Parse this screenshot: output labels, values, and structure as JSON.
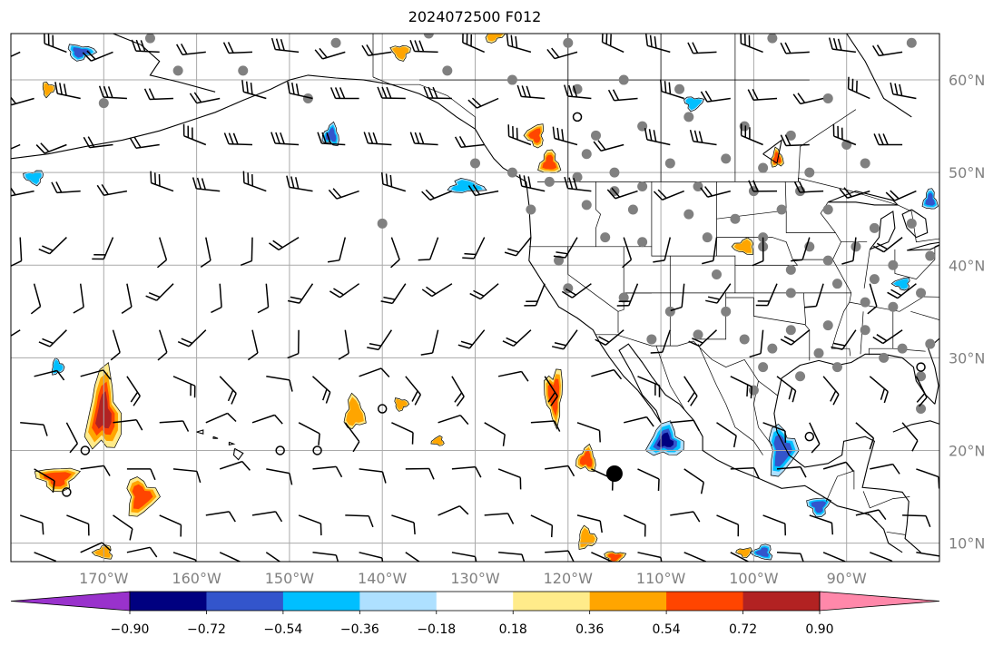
{
  "title": "2024072500 F012",
  "map": {
    "extent": {
      "lon_min": -180,
      "lon_max": -80,
      "lat_min": 8,
      "lat_max": 65
    },
    "lat_gridlines": [
      10,
      20,
      30,
      40,
      50,
      60
    ],
    "lon_gridlines": [
      -170,
      -160,
      -150,
      -140,
      -130,
      -120,
      -110,
      -100,
      -90
    ],
    "lat_labels": [
      "10°N",
      "20°N",
      "30°N",
      "40°N",
      "50°N",
      "60°N"
    ],
    "lon_labels": [
      "170°W",
      "160°W",
      "150°W",
      "140°W",
      "130°W",
      "120°W",
      "110°W",
      "100°W",
      "90°W"
    ],
    "colors": {
      "gridline": "#aaaaaa",
      "coast": "#000000",
      "station": "#808080",
      "barb": "#000000"
    }
  },
  "colorbar": {
    "bounds": [
      -1.08,
      -0.9,
      -0.72,
      -0.54,
      -0.36,
      -0.18,
      0.18,
      0.36,
      0.54,
      0.72,
      0.9,
      1.08
    ],
    "colors": [
      "#9932cc",
      "#000080",
      "#3355cc",
      "#00bfff",
      "#aee0ff",
      "#ffffff",
      "#ffeb8a",
      "#ffa500",
      "#ff4500",
      "#b22222",
      "#ff88aa"
    ],
    "under_color": "#9932cc",
    "over_color": "#ff88aa",
    "tick_values": [
      -0.9,
      -0.72,
      -0.54,
      -0.36,
      -0.18,
      0.18,
      0.36,
      0.54,
      0.72,
      0.9
    ],
    "tick_labels": [
      "−0.90",
      "−0.72",
      "−0.54",
      "−0.36",
      "−0.18",
      "0.18",
      "0.36",
      "0.54",
      "0.72",
      "0.90"
    ]
  },
  "fields": {
    "positive_blobs": [
      {
        "lon": -170,
        "lat": 24,
        "rlon": 2.2,
        "rlat": 5.5,
        "level": 0.72
      },
      {
        "lon": -166,
        "lat": 15,
        "rlon": 2.0,
        "rlat": 2.5,
        "level": 0.54
      },
      {
        "lon": -175,
        "lat": 17,
        "rlon": 2.6,
        "rlat": 1.6,
        "level": 0.54
      },
      {
        "lon": -170,
        "lat": 9,
        "rlon": 1.2,
        "rlat": 0.9,
        "level": 0.36
      },
      {
        "lon": -143,
        "lat": 24,
        "rlon": 1.3,
        "rlat": 2.2,
        "level": 0.36
      },
      {
        "lon": -138,
        "lat": 25,
        "rlon": 0.9,
        "rlat": 0.8,
        "level": 0.36
      },
      {
        "lon": -121.5,
        "lat": 26,
        "rlon": 1.2,
        "rlat": 3.5,
        "level": 0.54
      },
      {
        "lon": -118,
        "lat": 19,
        "rlon": 1.3,
        "rlat": 1.6,
        "level": 0.54
      },
      {
        "lon": -118,
        "lat": 10.5,
        "rlon": 1.2,
        "rlat": 1.4,
        "level": 0.36
      },
      {
        "lon": -115,
        "lat": 8.5,
        "rlon": 1.3,
        "rlat": 0.8,
        "level": 0.54
      },
      {
        "lon": -123.5,
        "lat": 54,
        "rlon": 1.2,
        "rlat": 1.5,
        "level": 0.54
      },
      {
        "lon": -122,
        "lat": 51,
        "rlon": 1.3,
        "rlat": 1.6,
        "level": 0.54
      },
      {
        "lon": -128,
        "lat": 65,
        "rlon": 1.2,
        "rlat": 1.2,
        "level": 0.36
      },
      {
        "lon": -138,
        "lat": 63,
        "rlon": 1.2,
        "rlat": 1.0,
        "level": 0.36
      },
      {
        "lon": -101,
        "lat": 42,
        "rlon": 1.4,
        "rlat": 1.0,
        "level": 0.36
      },
      {
        "lon": -97.5,
        "lat": 51.5,
        "rlon": 0.8,
        "rlat": 1.2,
        "level": 0.54
      },
      {
        "lon": -176,
        "lat": 59,
        "rlon": 0.8,
        "rlat": 0.9,
        "level": 0.36
      },
      {
        "lon": -101,
        "lat": 9,
        "rlon": 1.0,
        "rlat": 0.6,
        "level": 0.36
      },
      {
        "lon": -134,
        "lat": 21,
        "rlon": 0.8,
        "rlat": 0.6,
        "level": 0.36
      }
    ],
    "negative_blobs": [
      {
        "lon": -109.5,
        "lat": 21,
        "rlon": 2.3,
        "rlat": 2.2,
        "level": -0.72
      },
      {
        "lon": -97,
        "lat": 20,
        "rlon": 1.8,
        "rlat": 3.3,
        "level": -0.54
      },
      {
        "lon": -93,
        "lat": 14,
        "rlon": 1.4,
        "rlat": 1.3,
        "level": -0.54
      },
      {
        "lon": -99,
        "lat": 9,
        "rlon": 1.3,
        "rlat": 1.0,
        "level": -0.54
      },
      {
        "lon": -131,
        "lat": 48.5,
        "rlon": 2.3,
        "rlat": 0.9,
        "level": -0.36
      },
      {
        "lon": -172.5,
        "lat": 63,
        "rlon": 1.8,
        "rlat": 1.0,
        "level": -0.54
      },
      {
        "lon": -177.5,
        "lat": 49.5,
        "rlon": 1.3,
        "rlat": 0.9,
        "level": -0.36
      },
      {
        "lon": -145.5,
        "lat": 54,
        "rlon": 1.1,
        "rlat": 1.4,
        "level": -0.54
      },
      {
        "lon": -175,
        "lat": 29,
        "rlon": 0.8,
        "rlat": 1.0,
        "level": -0.36
      },
      {
        "lon": -106.5,
        "lat": 57.5,
        "rlon": 1.2,
        "rlat": 0.9,
        "level": -0.36
      },
      {
        "lon": -84,
        "lat": 38,
        "rlon": 1.1,
        "rlat": 0.8,
        "level": -0.36
      },
      {
        "lon": -81,
        "lat": 47,
        "rlon": 0.9,
        "rlat": 1.4,
        "level": -0.54
      }
    ]
  },
  "stations": [
    [
      -165,
      64.5
    ],
    [
      -162,
      61
    ],
    [
      -155,
      61
    ],
    [
      -148,
      58
    ],
    [
      -145,
      64
    ],
    [
      -135,
      65
    ],
    [
      -120,
      64
    ],
    [
      -119,
      59
    ],
    [
      -114,
      60
    ],
    [
      -108,
      59
    ],
    [
      -98,
      64.5
    ],
    [
      -92,
      58
    ],
    [
      -83,
      64
    ],
    [
      -133,
      61
    ],
    [
      -126,
      60
    ],
    [
      -170,
      57.5
    ],
    [
      -112,
      55
    ],
    [
      -107,
      56
    ],
    [
      -101,
      55
    ],
    [
      -96,
      54
    ],
    [
      -90,
      53
    ],
    [
      -109,
      51
    ],
    [
      -103,
      51.5
    ],
    [
      -99,
      50.5
    ],
    [
      -94,
      50
    ],
    [
      -88,
      51
    ],
    [
      -126,
      50
    ],
    [
      -122,
      49
    ],
    [
      -119,
      49.5
    ],
    [
      -115,
      48
    ],
    [
      -112,
      48.5
    ],
    [
      -106,
      48.5
    ],
    [
      -100,
      48
    ],
    [
      -95,
      48
    ],
    [
      -124,
      46
    ],
    [
      -118,
      46.5
    ],
    [
      -113,
      46
    ],
    [
      -107,
      45.5
    ],
    [
      -102,
      45
    ],
    [
      -97,
      46
    ],
    [
      -92,
      46
    ],
    [
      -87,
      44
    ],
    [
      -83,
      44.5
    ],
    [
      -121,
      40.5
    ],
    [
      -116,
      43
    ],
    [
      -112,
      42.5
    ],
    [
      -105,
      43
    ],
    [
      -99,
      43
    ],
    [
      -94,
      42
    ],
    [
      -89,
      42
    ],
    [
      -85,
      40
    ],
    [
      -81,
      41
    ],
    [
      -120,
      37.5
    ],
    [
      -114,
      36.5
    ],
    [
      -109,
      35
    ],
    [
      -103,
      35
    ],
    [
      -96,
      37
    ],
    [
      -91,
      38
    ],
    [
      -87,
      38.5
    ],
    [
      -82,
      37
    ],
    [
      -111,
      32
    ],
    [
      -106,
      32.5
    ],
    [
      -101,
      32
    ],
    [
      -96,
      33
    ],
    [
      -92,
      33.5
    ],
    [
      -88,
      33
    ],
    [
      -84,
      31
    ],
    [
      -81,
      31.5
    ],
    [
      -99,
      29
    ],
    [
      -95,
      28
    ],
    [
      -91,
      29
    ],
    [
      -86,
      30
    ],
    [
      -82,
      28
    ],
    [
      -82,
      24.5
    ],
    [
      -100,
      26.5
    ],
    [
      -115,
      17.5
    ],
    [
      -140,
      44.5
    ],
    [
      -130,
      51
    ],
    [
      -118,
      52
    ],
    [
      -117,
      54
    ],
    [
      -115,
      50
    ],
    [
      -104,
      39
    ],
    [
      -96,
      39.5
    ],
    [
      -92,
      40.5
    ],
    [
      -88,
      36
    ],
    [
      -85,
      35.5
    ],
    [
      -93,
      30.5
    ],
    [
      -98,
      31
    ],
    [
      -99,
      42
    ]
  ],
  "open_circles": [
    [
      -172,
      20
    ],
    [
      -151,
      20
    ],
    [
      -147,
      20
    ],
    [
      -140,
      24.5
    ],
    [
      -174,
      15.5
    ],
    [
      -119,
      56
    ],
    [
      -94,
      21.5
    ],
    [
      -82,
      29
    ]
  ],
  "wind_barbs": {
    "lat_rows": [
      63,
      58,
      53,
      48,
      43,
      38,
      33,
      28,
      23,
      18,
      13,
      9
    ],
    "lon_start": -179,
    "lon_step": 5,
    "lon_count": 21
  }
}
